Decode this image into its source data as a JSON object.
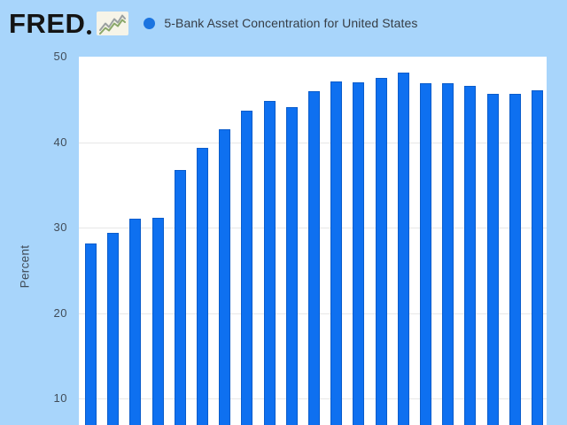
{
  "header": {
    "logo_text": "FRED",
    "logo_icon": "line-chart-icon"
  },
  "legend": {
    "marker_color": "#1b74e0",
    "label": "5-Bank Asset Concentration for United States"
  },
  "y_axis": {
    "label": "Percent",
    "ticks": [
      50,
      40,
      30,
      20,
      10
    ]
  },
  "chart_data": {
    "type": "bar",
    "title": "5-Bank Asset Concentration for United States",
    "xlabel": "",
    "ylabel": "Percent",
    "series": [
      {
        "name": "5-Bank Asset Concentration for United States",
        "values": [
          28.1,
          29.4,
          31.0,
          31.1,
          36.7,
          39.3,
          41.5,
          43.7,
          44.8,
          44.1,
          46.0,
          47.1,
          47.0,
          47.5,
          48.1,
          46.9,
          46.9,
          46.6,
          45.6,
          45.6,
          46.1
        ]
      }
    ],
    "bar_count": 21,
    "yticks": [
      10,
      20,
      30,
      40,
      50
    ],
    "y_max_visible": 50,
    "y_min_visible": 7,
    "x_axis_labels_visible": false,
    "grid": true,
    "legend_position": "top",
    "colors": {
      "bar": "#0e70f0",
      "bar_border": "#0a5ccb",
      "background": "#a8d5fb",
      "plot_background": "#ffffff",
      "gridline": "#e7e7e7",
      "axis_text": "#414c58",
      "legend_text": "#363d45",
      "logo_text": "#141414"
    }
  }
}
